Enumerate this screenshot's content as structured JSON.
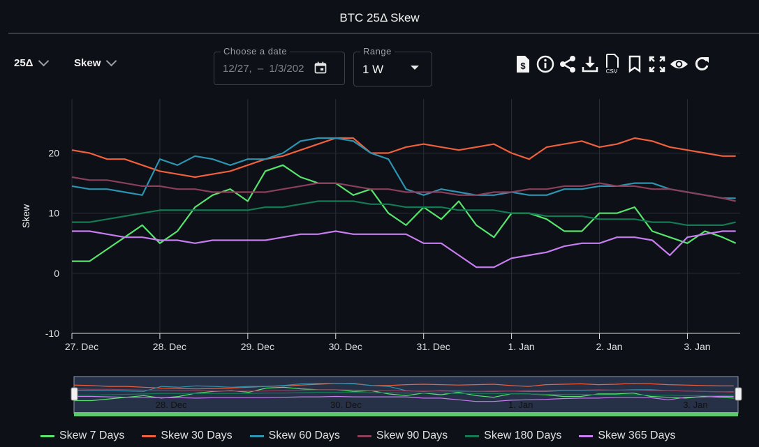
{
  "header": {
    "title": "BTC 25Δ Skew"
  },
  "controls": {
    "delta": {
      "label": "25Δ"
    },
    "metric": {
      "label": "Skew"
    },
    "date_picker": {
      "label": "Choose a date",
      "start": "12/27,",
      "separator": "–",
      "end": "1/3/202"
    },
    "range": {
      "label": "Range",
      "value": "1 W"
    }
  },
  "toolbar": [
    {
      "name": "pdf-dollar-icon"
    },
    {
      "name": "info-icon"
    },
    {
      "name": "share-icon"
    },
    {
      "name": "download-icon"
    },
    {
      "name": "csv-icon"
    },
    {
      "name": "bookmark-icon"
    },
    {
      "name": "fullscreen-icon"
    },
    {
      "name": "eye-icon"
    },
    {
      "name": "refresh-icon"
    }
  ],
  "colors": {
    "Skew 7 Days": "#57e36d",
    "Skew 30 Days": "#f0603c",
    "Skew 60 Days": "#2c93b0",
    "Skew 90 Days": "#8b3f5a",
    "Skew 180 Days": "#137a54",
    "Skew 365 Days": "#c77df0"
  },
  "chart_data": {
    "type": "line",
    "title": "BTC 25Δ Skew",
    "ylabel": "Skew",
    "xlabel": "",
    "xlim": [
      0,
      7.6
    ],
    "ylim": [
      -10,
      29
    ],
    "yticks": [
      -10,
      0,
      10,
      20
    ],
    "x_ticks": [
      {
        "x": 0,
        "label": "27. Dec"
      },
      {
        "x": 1,
        "label": "28. Dec"
      },
      {
        "x": 2,
        "label": "29. Dec"
      },
      {
        "x": 3,
        "label": "30. Dec"
      },
      {
        "x": 4,
        "label": "31. Dec"
      },
      {
        "x": 5,
        "label": "1. Jan"
      },
      {
        "x": 6,
        "label": "2. Jan"
      },
      {
        "x": 7,
        "label": "3. Jan"
      }
    ],
    "navigator_labels": [
      {
        "x": 1,
        "label": "28. Dec"
      },
      {
        "x": 3,
        "label": "30. Dec"
      },
      {
        "x": 5,
        "label": "1. Jan"
      },
      {
        "x": 7,
        "label": "3. Jan"
      }
    ],
    "grid": true,
    "legend_position": "bottom",
    "series": [
      {
        "name": "Skew 7 Days",
        "x": [
          0,
          0.2,
          0.4,
          0.6,
          0.8,
          1.0,
          1.2,
          1.4,
          1.6,
          1.8,
          2.0,
          2.2,
          2.4,
          2.6,
          2.8,
          3.0,
          3.2,
          3.4,
          3.6,
          3.8,
          4.0,
          4.2,
          4.4,
          4.6,
          4.8,
          5.0,
          5.2,
          5.4,
          5.6,
          5.8,
          6.0,
          6.2,
          6.4,
          6.6,
          6.8,
          7.0,
          7.2,
          7.4,
          7.55
        ],
        "y": [
          2,
          2,
          4,
          6,
          8,
          5,
          7,
          11,
          13,
          14,
          12,
          17,
          18,
          16,
          15,
          15,
          13,
          14,
          10,
          8,
          11,
          9,
          12,
          8,
          6,
          10,
          10,
          9,
          7,
          7,
          10,
          10,
          11,
          7,
          6,
          5,
          7,
          6,
          5
        ]
      },
      {
        "name": "Skew 30 Days",
        "x": [
          0,
          0.2,
          0.4,
          0.6,
          0.8,
          1.0,
          1.2,
          1.4,
          1.6,
          1.8,
          2.0,
          2.2,
          2.4,
          2.6,
          2.8,
          3.0,
          3.2,
          3.4,
          3.6,
          3.8,
          4.0,
          4.2,
          4.4,
          4.6,
          4.8,
          5.0,
          5.2,
          5.4,
          5.6,
          5.8,
          6.0,
          6.2,
          6.4,
          6.6,
          6.8,
          7.0,
          7.2,
          7.4,
          7.55
        ],
        "y": [
          20.5,
          20,
          19,
          19,
          18,
          17,
          16.5,
          16,
          16.5,
          17,
          18,
          19,
          19.5,
          20.5,
          21.5,
          22.5,
          22.5,
          20,
          20,
          21,
          21.5,
          21,
          20.5,
          21,
          21.5,
          20,
          19,
          21,
          21.5,
          22,
          21,
          21.5,
          22.5,
          22,
          21,
          20.5,
          20,
          19.5,
          19.5
        ]
      },
      {
        "name": "Skew 60 Days",
        "x": [
          0,
          0.2,
          0.4,
          0.6,
          0.8,
          1.0,
          1.2,
          1.4,
          1.6,
          1.8,
          2.0,
          2.2,
          2.4,
          2.6,
          2.8,
          3.0,
          3.2,
          3.4,
          3.6,
          3.8,
          4.0,
          4.2,
          4.4,
          4.6,
          4.8,
          5.0,
          5.2,
          5.4,
          5.6,
          5.8,
          6.0,
          6.2,
          6.4,
          6.6,
          6.8,
          7.0,
          7.2,
          7.4,
          7.55
        ],
        "y": [
          14.5,
          14,
          14,
          13.5,
          13,
          19,
          18,
          19.5,
          19,
          18,
          19,
          19,
          20,
          22,
          22.5,
          22.5,
          22,
          20,
          19,
          14,
          13,
          14,
          13.5,
          13,
          13,
          13.5,
          13,
          13,
          14,
          14,
          14.5,
          14.5,
          15,
          15,
          14,
          13.5,
          13,
          12.5,
          12.5
        ]
      },
      {
        "name": "Skew 90 Days",
        "x": [
          0,
          0.2,
          0.4,
          0.6,
          0.8,
          1.0,
          1.2,
          1.4,
          1.6,
          1.8,
          2.0,
          2.2,
          2.4,
          2.6,
          2.8,
          3.0,
          3.2,
          3.4,
          3.6,
          3.8,
          4.0,
          4.2,
          4.4,
          4.6,
          4.8,
          5.0,
          5.2,
          5.4,
          5.6,
          5.8,
          6.0,
          6.2,
          6.4,
          6.6,
          6.8,
          7.0,
          7.2,
          7.4,
          7.55
        ],
        "y": [
          16,
          15.5,
          15.5,
          15,
          14.5,
          14.5,
          14,
          14,
          13.5,
          13.5,
          13.5,
          13.5,
          14,
          14.5,
          15,
          15,
          14.5,
          14,
          14,
          13.5,
          13.5,
          13.5,
          13,
          13,
          13.5,
          13.5,
          14,
          14,
          14.5,
          14.5,
          15,
          14.5,
          14.5,
          14,
          14,
          13.5,
          13,
          12.5,
          12
        ]
      },
      {
        "name": "Skew 180 Days",
        "x": [
          0,
          0.2,
          0.4,
          0.6,
          0.8,
          1.0,
          1.2,
          1.4,
          1.6,
          1.8,
          2.0,
          2.2,
          2.4,
          2.6,
          2.8,
          3.0,
          3.2,
          3.4,
          3.6,
          3.8,
          4.0,
          4.2,
          4.4,
          4.6,
          4.8,
          5.0,
          5.2,
          5.4,
          5.6,
          5.8,
          6.0,
          6.2,
          6.4,
          6.6,
          6.8,
          7.0,
          7.2,
          7.4,
          7.55
        ],
        "y": [
          8.5,
          8.5,
          9,
          9.5,
          10,
          10.5,
          10.5,
          10.5,
          10.5,
          10.5,
          10.5,
          11,
          11,
          11.5,
          12,
          12,
          12,
          11.5,
          11.5,
          11,
          11,
          11,
          10.5,
          10.5,
          10.5,
          10,
          10,
          9.5,
          9.5,
          9.5,
          9,
          9,
          9,
          8.5,
          8.5,
          8,
          8,
          8,
          8.5
        ]
      },
      {
        "name": "Skew 365 Days",
        "x": [
          0,
          0.2,
          0.4,
          0.6,
          0.8,
          1.0,
          1.2,
          1.4,
          1.6,
          1.8,
          2.0,
          2.2,
          2.4,
          2.6,
          2.8,
          3.0,
          3.2,
          3.4,
          3.6,
          3.8,
          4.0,
          4.2,
          4.4,
          4.6,
          4.8,
          5.0,
          5.2,
          5.4,
          5.6,
          5.8,
          6.0,
          6.2,
          6.4,
          6.6,
          6.8,
          7.0,
          7.2,
          7.4,
          7.55
        ],
        "y": [
          7,
          7,
          6.5,
          6,
          6,
          5.5,
          5.5,
          5,
          5.5,
          5.5,
          5.5,
          5.5,
          6,
          6.5,
          6.5,
          7,
          6.5,
          6.5,
          6.5,
          6.5,
          5,
          5,
          3,
          1,
          1,
          2.5,
          3,
          3.5,
          4.5,
          5,
          5,
          6,
          6,
          5.5,
          3,
          6,
          6.5,
          7,
          7
        ]
      }
    ]
  }
}
